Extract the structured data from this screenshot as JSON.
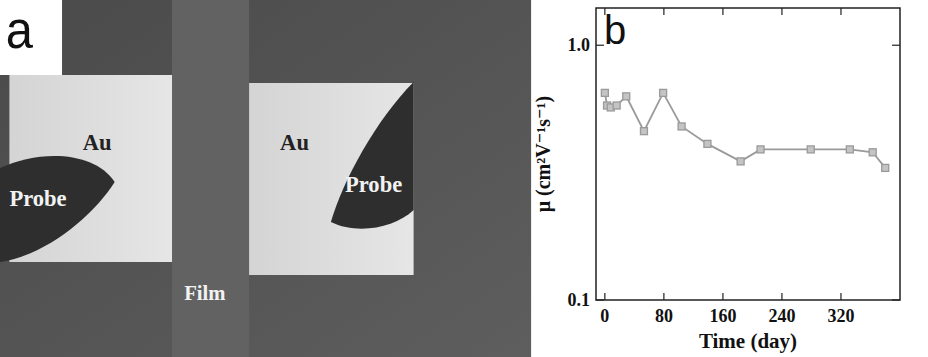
{
  "image_panel": {
    "panel_label": "a",
    "labels": {
      "au_left": "Au",
      "au_right": "Au",
      "probe_left": "Probe",
      "probe_right": "Probe",
      "film": "Film"
    }
  },
  "chart_data": {
    "type": "line",
    "panel_label": "b",
    "x_label": "Time (day)",
    "y_label": "μ (cm²V⁻¹s⁻¹)",
    "x": [
      0,
      3,
      8,
      16,
      29,
      53,
      79,
      104,
      139,
      184,
      211,
      279,
      332,
      363,
      380
    ],
    "series": [
      {
        "values": [
          0.65,
          0.58,
          0.57,
          0.58,
          0.63,
          0.46,
          0.65,
          0.48,
          0.41,
          0.35,
          0.39,
          0.39,
          0.39,
          0.38,
          0.33
        ],
        "color": "#9a9a9a",
        "marker": "square",
        "line_style": "solid"
      }
    ],
    "xlim": [
      -12,
      400
    ],
    "xticks": [
      0,
      80,
      160,
      240,
      320
    ],
    "ylim": [
      0.1,
      1.4
    ],
    "yticks": [
      {
        "value": 1,
        "label": "1.0"
      },
      0.1
    ],
    "log": "y"
  }
}
